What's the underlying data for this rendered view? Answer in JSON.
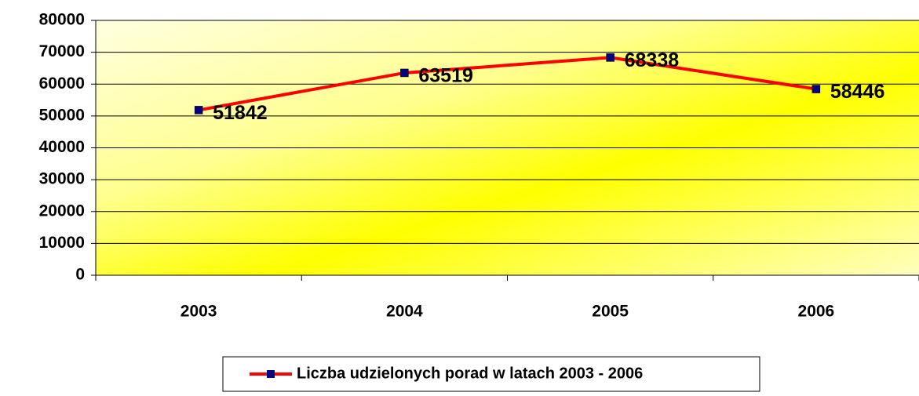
{
  "chart_data": {
    "type": "line",
    "categories": [
      "2003",
      "2004",
      "2005",
      "2006"
    ],
    "series": [
      {
        "name": "Liczba udzielonych porad w latach 2003 - 2006",
        "color": "#ff0000",
        "marker_color": "#000080",
        "values": [
          51842,
          63519,
          68338,
          58446
        ]
      }
    ],
    "ylim": [
      0,
      80000
    ],
    "yticks": [
      0,
      10000,
      20000,
      30000,
      40000,
      50000,
      60000,
      70000,
      80000
    ],
    "grid": true,
    "legend": "bottom"
  }
}
